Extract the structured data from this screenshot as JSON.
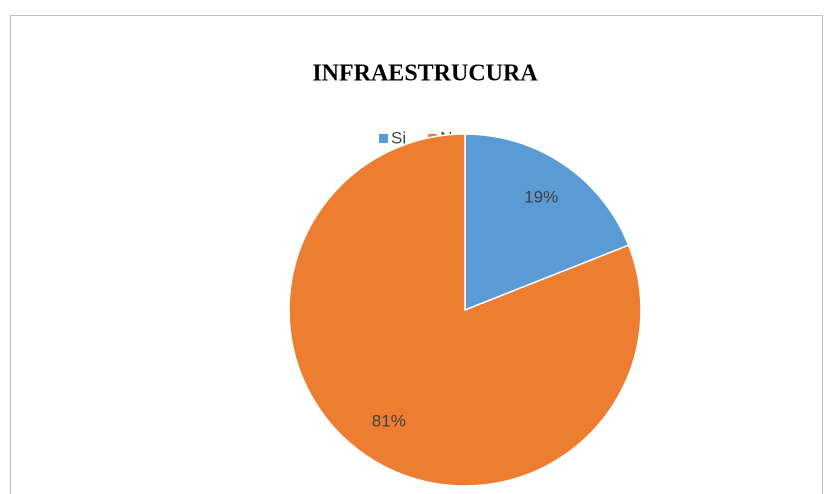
{
  "chart_data": {
    "type": "pie",
    "title": "INFRAESTRUCURA",
    "categories": [
      "Si",
      "No"
    ],
    "values": [
      19,
      81
    ],
    "value_labels": [
      "19%",
      "81%"
    ],
    "colors": [
      "#5b9bd5",
      "#ed7d31"
    ],
    "legend": "top"
  }
}
